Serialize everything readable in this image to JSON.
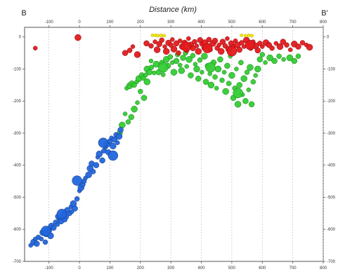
{
  "chart_data": {
    "type": "scatter",
    "title": "Distance (km)",
    "left_label": "B",
    "right_label": "B'",
    "xlabel": "Distance (km)",
    "ylabel": "",
    "xlim": [
      -180,
      800
    ],
    "ylim": [
      -700,
      30
    ],
    "x_ticks": [
      -100,
      0,
      100,
      200,
      300,
      400,
      500,
      600,
      700,
      800
    ],
    "y_ticks": [
      0,
      -100,
      -200,
      -300,
      -400,
      -500,
      -600,
      -700
    ],
    "grid": "vertical-dashed",
    "legend": "none",
    "colors": {
      "yellow": "#f2e600",
      "red": "#e31a1c",
      "green": "#33cc33",
      "blue": "#2266dd"
    },
    "series": [
      {
        "color": "yellow",
        "points": [
          [
            240,
            5
          ],
          [
            250,
            5
          ],
          [
            258,
            4
          ],
          [
            268,
            5
          ],
          [
            278,
            4
          ],
          [
            532,
            5
          ],
          [
            545,
            4
          ],
          [
            556,
            5
          ],
          [
            566,
            4
          ]
        ]
      },
      {
        "color": "red",
        "points": [
          [
            -145,
            -35
          ],
          [
            -5,
            -2
          ],
          [
            150,
            -50
          ],
          [
            165,
            -42
          ],
          [
            175,
            -30
          ],
          [
            190,
            -55
          ],
          [
            220,
            -20
          ],
          [
            235,
            -28
          ],
          [
            248,
            -15
          ],
          [
            255,
            -40
          ],
          [
            262,
            -22
          ],
          [
            270,
            -10
          ],
          [
            280,
            -30
          ],
          [
            285,
            -45
          ],
          [
            292,
            -18
          ],
          [
            300,
            -25
          ],
          [
            305,
            -8
          ],
          [
            310,
            -38
          ],
          [
            318,
            -20
          ],
          [
            325,
            -50
          ],
          [
            330,
            -12
          ],
          [
            338,
            -30
          ],
          [
            345,
            -18
          ],
          [
            352,
            -42
          ],
          [
            358,
            -5
          ],
          [
            365,
            -25
          ],
          [
            372,
            -35
          ],
          [
            378,
            -15
          ],
          [
            385,
            -28
          ],
          [
            390,
            -45
          ],
          [
            396,
            -10
          ],
          [
            402,
            -22
          ],
          [
            408,
            -35
          ],
          [
            412,
            -18
          ],
          [
            420,
            -30
          ],
          [
            425,
            -8
          ],
          [
            430,
            -40
          ],
          [
            438,
            -20
          ],
          [
            445,
            -12
          ],
          [
            452,
            -35
          ],
          [
            458,
            -25
          ],
          [
            465,
            -45
          ],
          [
            470,
            -15
          ],
          [
            478,
            -28
          ],
          [
            485,
            -5
          ],
          [
            490,
            -38
          ],
          [
            498,
            -20
          ],
          [
            505,
            -30
          ],
          [
            512,
            -12
          ],
          [
            518,
            -25
          ],
          [
            525,
            -40
          ],
          [
            532,
            -18
          ],
          [
            540,
            -30
          ],
          [
            548,
            -10
          ],
          [
            555,
            -22
          ],
          [
            562,
            -35
          ],
          [
            570,
            -15
          ],
          [
            578,
            -28
          ],
          [
            585,
            -42
          ],
          [
            592,
            -20
          ],
          [
            600,
            -30
          ],
          [
            612,
            -18
          ],
          [
            622,
            -25
          ],
          [
            632,
            -35
          ],
          [
            645,
            -20
          ],
          [
            658,
            -30
          ],
          [
            668,
            -15
          ],
          [
            680,
            -25
          ],
          [
            692,
            -40
          ],
          [
            705,
            -22
          ],
          [
            718,
            -30
          ],
          [
            732,
            -18
          ],
          [
            745,
            -25
          ],
          [
            755,
            -32
          ]
        ]
      },
      {
        "color": "green",
        "points": [
          [
            155,
            -160
          ],
          [
            165,
            -152
          ],
          [
            172,
            -145
          ],
          [
            180,
            -150
          ],
          [
            188,
            -140
          ],
          [
            195,
            -130
          ],
          [
            205,
            -120
          ],
          [
            210,
            -128
          ],
          [
            218,
            -118
          ],
          [
            222,
            -100
          ],
          [
            230,
            -110
          ],
          [
            236,
            -95
          ],
          [
            245,
            -112
          ],
          [
            252,
            -85
          ],
          [
            260,
            -110
          ],
          [
            270,
            -80
          ],
          [
            275,
            -118
          ],
          [
            285,
            -70
          ],
          [
            290,
            -90
          ],
          [
            298,
            -62
          ],
          [
            305,
            -80
          ],
          [
            310,
            -110
          ],
          [
            318,
            -75
          ],
          [
            322,
            -55
          ],
          [
            330,
            -88
          ],
          [
            335,
            -105
          ],
          [
            340,
            -65
          ],
          [
            348,
            -50
          ],
          [
            352,
            -92
          ],
          [
            360,
            -70
          ],
          [
            365,
            -120
          ],
          [
            372,
            -58
          ],
          [
            380,
            -85
          ],
          [
            385,
            -100
          ],
          [
            390,
            -130
          ],
          [
            395,
            -72
          ],
          [
            402,
            -110
          ],
          [
            410,
            -60
          ],
          [
            415,
            -140
          ],
          [
            420,
            -90
          ],
          [
            428,
            -115
          ],
          [
            432,
            -150
          ],
          [
            440,
            -80
          ],
          [
            445,
            -125
          ],
          [
            450,
            -160
          ],
          [
            455,
            -100
          ],
          [
            462,
            -70
          ],
          [
            468,
            -135
          ],
          [
            475,
            -110
          ],
          [
            480,
            -170
          ],
          [
            485,
            -90
          ],
          [
            490,
            -145
          ],
          [
            495,
            -60
          ],
          [
            500,
            -120
          ],
          [
            505,
            -190
          ],
          [
            510,
            -160
          ],
          [
            515,
            -100
          ],
          [
            520,
            -210
          ],
          [
            525,
            -150
          ],
          [
            530,
            -80
          ],
          [
            535,
            -180
          ],
          [
            540,
            -130
          ],
          [
            545,
            -200
          ],
          [
            550,
            -110
          ],
          [
            555,
            -165
          ],
          [
            560,
            -95
          ],
          [
            565,
            -210
          ],
          [
            570,
            -140
          ],
          [
            578,
            -120
          ],
          [
            585,
            -100
          ],
          [
            592,
            -70
          ],
          [
            600,
            -55
          ],
          [
            610,
            -80
          ],
          [
            625,
            -65
          ],
          [
            640,
            -75
          ],
          [
            655,
            -60
          ],
          [
            670,
            -70
          ],
          [
            690,
            -65
          ],
          [
            705,
            -75
          ],
          [
            718,
            -60
          ],
          [
            235,
            -75
          ],
          [
            222,
            -140
          ],
          [
            212,
            -190
          ],
          [
            200,
            -170
          ],
          [
            190,
            -205
          ],
          [
            180,
            -225
          ],
          [
            170,
            -250
          ],
          [
            160,
            -265
          ],
          [
            150,
            -240
          ],
          [
            140,
            -275
          ],
          [
            132,
            -300
          ]
        ]
      },
      {
        "color": "blue",
        "points": [
          [
            -160,
            -650
          ],
          [
            -150,
            -640
          ],
          [
            -140,
            -645
          ],
          [
            -135,
            -625
          ],
          [
            -125,
            -630
          ],
          [
            -120,
            -610
          ],
          [
            -110,
            -615
          ],
          [
            -105,
            -600
          ],
          [
            -98,
            -605
          ],
          [
            -92,
            -590
          ],
          [
            -85,
            -595
          ],
          [
            -78,
            -578
          ],
          [
            -72,
            -585
          ],
          [
            -65,
            -565
          ],
          [
            -60,
            -575
          ],
          [
            -55,
            -555
          ],
          [
            -50,
            -545
          ],
          [
            -45,
            -560
          ],
          [
            -40,
            -540
          ],
          [
            -32,
            -550
          ],
          [
            -28,
            -530
          ],
          [
            -20,
            -520
          ],
          [
            -15,
            -535
          ],
          [
            -8,
            -505
          ],
          [
            0,
            -480
          ],
          [
            5,
            -470
          ],
          [
            10,
            -460
          ],
          [
            15,
            -450
          ],
          [
            20,
            -440
          ],
          [
            35,
            -410
          ],
          [
            40,
            -395
          ],
          [
            45,
            -420
          ],
          [
            60,
            -375
          ],
          [
            65,
            -365
          ],
          [
            75,
            -385
          ],
          [
            80,
            -355
          ],
          [
            85,
            -345
          ],
          [
            90,
            -335
          ],
          [
            95,
            -360
          ],
          [
            100,
            -325
          ],
          [
            105,
            -315
          ],
          [
            110,
            -340
          ],
          [
            115,
            -320
          ],
          [
            120,
            -305
          ],
          [
            125,
            -330
          ],
          [
            130,
            -310
          ],
          [
            135,
            -290
          ],
          [
            -112,
            -640
          ],
          [
            -145,
            -630
          ],
          [
            -95,
            -620
          ],
          [
            -70,
            -560
          ],
          [
            -48,
            -570
          ],
          [
            -25,
            -545
          ],
          [
            30,
            -430
          ],
          [
            55,
            -400
          ]
        ]
      },
      {
        "color": "red",
        "size": "large",
        "points": [
          [
            350,
            -30
          ],
          [
            420,
            -35
          ],
          [
            500,
            -45
          ],
          [
            560,
            -25
          ]
        ]
      },
      {
        "color": "green",
        "size": "large",
        "points": [
          [
            275,
            -95
          ],
          [
            430,
            -95
          ],
          [
            520,
            -175
          ]
        ]
      },
      {
        "color": "blue",
        "size": "large",
        "points": [
          [
            -110,
            -605
          ],
          [
            -58,
            -552
          ],
          [
            -8,
            -448
          ],
          [
            78,
            -330
          ],
          [
            110,
            -370
          ]
        ]
      }
    ]
  }
}
